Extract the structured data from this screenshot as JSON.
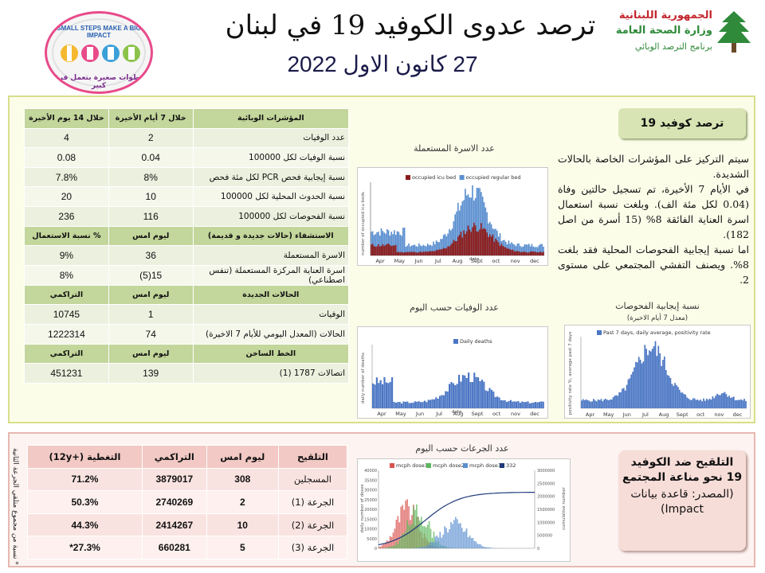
{
  "header": {
    "title": "ترصد عدوى الكوفيد 19 في لبنان",
    "date": "27 كانون الاول 2022",
    "ministry": {
      "line1": "الجمهورية اللبنانية",
      "line2": "وزارة الصحة العامة",
      "line3": "برنامج الترصد الوبائي"
    },
    "campaign_logo": {
      "slogan_en": "SMALL STEPS MAKE A BIG IMPACT",
      "slogan_ar": "خطوات صغيرة بتعمل فرق كبير"
    }
  },
  "indicators_table": {
    "headers": [
      "المؤشرات الوبائية",
      "خلال 7 أيام الأخيرة",
      "خلال 14 يوم الأخيرة"
    ],
    "rows": [
      [
        "عدد الوفيات",
        "2",
        "4"
      ],
      [
        "نسبة الوفيات لكل 100000",
        "0.04",
        "0.08"
      ],
      [
        "نسبة إيجابية فحص PCR لكل مئة فحص",
        "8%",
        "7.8%"
      ],
      [
        "نسبة الحدوث المحلية لكل 100000",
        "10",
        "20"
      ],
      [
        "نسبة الفحوصات لكل 100000",
        "116",
        "236"
      ]
    ],
    "hosp_header": [
      "الاستشفاء (حالات جديدة و قديمة)",
      "ليوم امس",
      "% نسبة الاستعمال"
    ],
    "hosp_rows": [
      [
        "الاسرة المستعملة",
        "36",
        "9%"
      ],
      [
        "اسرة العناية المركزة المستعملة (تنفس اصطناعي)",
        "15(5)",
        "8%"
      ]
    ],
    "new_header": [
      "الحالات الجديدة",
      "ليوم امس",
      "التراكمي"
    ],
    "new_rows": [
      [
        "الوفيات",
        "1",
        "10745"
      ],
      [
        "الحالات (المعدل اليومي للأيام 7 الاخيرة)",
        "74",
        "1222314"
      ]
    ],
    "hotline_header": [
      "الخط الساخن",
      "ليوم امس",
      "التراكمي"
    ],
    "hotline_rows": [
      [
        "اتصالات 1787 (1)",
        "139",
        "451231"
      ]
    ]
  },
  "charts": {
    "beds": {
      "caption": "عدد الاسرة المستعملة",
      "legend": [
        "occupied icu bed",
        "occupied regular bed"
      ],
      "ylabel": "number of occupied icu beds",
      "xlabel": "date",
      "months": [
        "Apr",
        "May",
        "Jun",
        "Jul",
        "Aug",
        "Sept",
        "oct",
        "nov",
        "dec"
      ],
      "colors": {
        "icu": "#8b1a1a",
        "regular": "#5b8fd0"
      }
    },
    "deaths": {
      "caption": "عدد الوفيات حسب اليوم",
      "legend": [
        "Daily deaths"
      ],
      "ylabel": "daily number of deaths",
      "xlabel": "date",
      "months": [
        "Apr",
        "May",
        "Jun",
        "Jul",
        "Aug",
        "Sept",
        "oct",
        "nov",
        "dec"
      ],
      "colors": {
        "deaths": "#4a76c4"
      }
    },
    "positivity": {
      "caption": "نسبة إيجابية الفحوصات",
      "subcaption": "(معدل 7 أيام الاخيرة)",
      "legend": [
        "Past 7 days, daily average, positivity rate"
      ],
      "ylabel": "positivity rate %, average past 7 days",
      "months": [
        "Apr",
        "May",
        "Jun",
        "Jul",
        "Aug",
        "Sept",
        "oct",
        "nov",
        "dec"
      ],
      "colors": {
        "positivity": "#4a76c4"
      }
    },
    "vaccination": {
      "caption": "عدد الجرعات حسب اليوم",
      "legend": [
        "mcph dose1",
        "mcph dose2",
        "mcph dose3",
        "332"
      ],
      "ylabel": "daily number of doses",
      "ylabel2": "cumulative number",
      "y_ticks": [
        "40000",
        "35000",
        "30000",
        "25000",
        "20000",
        "15000",
        "10000",
        "5000",
        "0"
      ],
      "y2_ticks": [
        "3000000",
        "2500000",
        "2000000",
        "1500000",
        "1000000",
        "500000",
        "0"
      ],
      "colors": {
        "dose1": "#d9534f",
        "dose2": "#5cb85c",
        "dose3": "#5b8fd0",
        "cumulative": "#1f3a7a"
      }
    }
  },
  "covid_summary": {
    "box_title": "ترصد كوفيد 19",
    "paragraphs": [
      "سيتم التركيز على المؤشرات الخاصة بالحالات الشديدة.",
      "في الأيام 7 الأخيرة، تم تسجيل حالتين وفاة (0.04 لكل مئة الف). وبلغت نسبة استعمال اسرة العناية الفائقة 8% (15 أسرة من اصل 182).",
      "اما نسبة إيجابية الفحوصات المحلية فقد بلغت 8%. ويصنف التفشي المجتمعي على مستوى 2."
    ]
  },
  "vaccination_table": {
    "headers": [
      "التلقيح",
      "ليوم امس",
      "التراكمي",
      "التغطية (+12y)"
    ],
    "rows": [
      [
        "المسجلين",
        "308",
        "3879017",
        "71.2%"
      ],
      [
        "الجرعة (1)",
        "2",
        "2740269",
        "50.3%"
      ],
      [
        "الجرعة (2)",
        "10",
        "2414267",
        "44.3%"
      ],
      [
        "الجرعة (3)",
        "5",
        "660281",
        "27.3%*"
      ]
    ],
    "note": "* نسبة من مجموع متلقي الجرعة الثانية"
  },
  "vaccination_box": {
    "title": "التلقيح ضد الكوفيد 19 نحو مناعة المجتمع",
    "source": "(المصدر: قاعدة بيانات Impact)"
  }
}
